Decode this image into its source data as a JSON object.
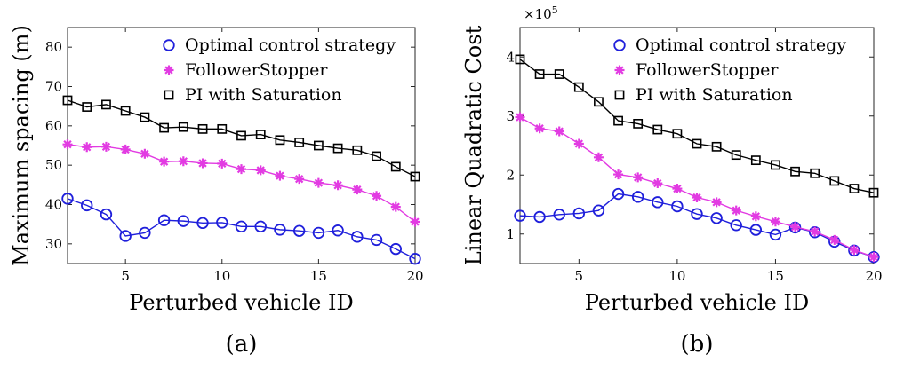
{
  "chart_data": [
    {
      "type": "line",
      "caption": "(a)",
      "xlabel": "Perturbed vehicle ID",
      "ylabel": "Maximum spacing (m)",
      "xlim": [
        2,
        20
      ],
      "ylim": [
        25,
        85
      ],
      "xticks": [
        5,
        10,
        15,
        20
      ],
      "yticks": [
        30,
        40,
        50,
        60,
        70,
        80
      ],
      "legend_position": "top-right",
      "grid": false,
      "x": [
        2,
        3,
        4,
        5,
        6,
        7,
        8,
        9,
        10,
        11,
        12,
        13,
        14,
        15,
        16,
        17,
        18,
        19,
        20
      ],
      "series": [
        {
          "name": "Optimal control strategy",
          "marker": "circle",
          "color": "#1f1fdb",
          "values": [
            41.5,
            39.8,
            37.5,
            32.0,
            32.8,
            36.0,
            35.8,
            35.3,
            35.4,
            34.4,
            34.4,
            33.6,
            33.3,
            32.8,
            33.4,
            31.8,
            31.0,
            28.7,
            26.2
          ]
        },
        {
          "name": "FollowerStopper",
          "marker": "asterisk",
          "color": "#e23be2",
          "values": [
            55.3,
            54.6,
            54.7,
            54.0,
            52.9,
            50.9,
            51.0,
            50.5,
            50.4,
            49.0,
            48.7,
            47.3,
            46.5,
            45.5,
            44.9,
            43.8,
            42.2,
            39.4,
            35.6
          ]
        },
        {
          "name": "PI with Saturation",
          "marker": "square",
          "color": "#000000",
          "values": [
            66.5,
            64.8,
            65.4,
            63.8,
            62.2,
            59.5,
            59.7,
            59.2,
            59.2,
            57.5,
            57.8,
            56.4,
            55.8,
            55.0,
            54.3,
            53.8,
            52.3,
            49.6,
            47.1
          ]
        }
      ]
    },
    {
      "type": "line",
      "caption": "(b)",
      "xlabel": "Perturbed vehicle ID",
      "ylabel": "Linear Quadratic Cost",
      "multiplier_label": "×10",
      "multiplier_exponent": "5",
      "xlim": [
        2,
        20
      ],
      "ylim": [
        0.5,
        4.5
      ],
      "xticks": [
        5,
        10,
        15,
        20
      ],
      "yticks": [
        1,
        2,
        3,
        4
      ],
      "legend_position": "top-right",
      "grid": false,
      "x": [
        2,
        3,
        4,
        5,
        6,
        7,
        8,
        9,
        10,
        11,
        12,
        13,
        14,
        15,
        16,
        17,
        18,
        19,
        20
      ],
      "series": [
        {
          "name": "Optimal control strategy",
          "marker": "circle",
          "color": "#1f1fdb",
          "values": [
            1.31,
            1.29,
            1.33,
            1.35,
            1.4,
            1.68,
            1.63,
            1.54,
            1.47,
            1.34,
            1.27,
            1.15,
            1.07,
            0.99,
            1.11,
            1.03,
            0.87,
            0.72,
            0.61
          ]
        },
        {
          "name": "FollowerStopper",
          "marker": "asterisk",
          "color": "#e23be2",
          "values": [
            2.98,
            2.79,
            2.74,
            2.53,
            2.3,
            2.01,
            1.96,
            1.86,
            1.77,
            1.62,
            1.54,
            1.4,
            1.3,
            1.21,
            1.12,
            1.04,
            0.9,
            0.73,
            0.61
          ]
        },
        {
          "name": "PI with Saturation",
          "marker": "square",
          "color": "#000000",
          "values": [
            3.96,
            3.71,
            3.71,
            3.49,
            3.24,
            2.92,
            2.87,
            2.77,
            2.7,
            2.53,
            2.48,
            2.34,
            2.25,
            2.17,
            2.06,
            2.03,
            1.9,
            1.77,
            1.7
          ]
        }
      ]
    }
  ]
}
